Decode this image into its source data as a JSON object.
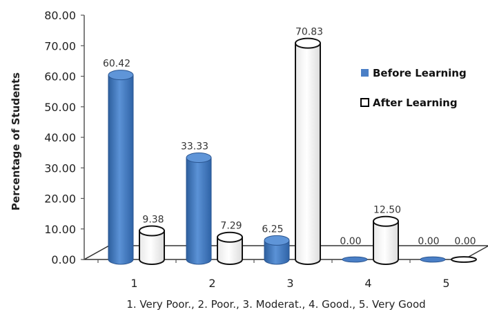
{
  "chart_data": {
    "type": "bar",
    "categories": [
      "1",
      "2",
      "3",
      "4",
      "5"
    ],
    "xlabel": "1. Very Poor., 2. Poor., 3. Moderat., 4. Good., 5. Very Good",
    "ylabel": "Percentage of Students",
    "ylim": [
      0,
      80
    ],
    "yticks": [
      "0.00",
      "10.00",
      "20.00",
      "30.00",
      "40.00",
      "50.00",
      "60.00",
      "70.00",
      "80.00"
    ],
    "grid": false,
    "legend_position": "right",
    "series": [
      {
        "name": "Before Learning",
        "color": "#4a7fc6",
        "values": [
          60.42,
          33.33,
          6.25,
          0.0,
          0.0
        ],
        "labels": [
          "60.42",
          "33.33",
          "6.25",
          "0.00",
          "0.00"
        ]
      },
      {
        "name": "After Learning",
        "color": "#ffffff",
        "values": [
          9.38,
          7.29,
          70.83,
          12.5,
          0.0
        ],
        "labels": [
          "9.38",
          "7.29",
          "70.83",
          "12.50",
          "0.00"
        ]
      }
    ]
  }
}
